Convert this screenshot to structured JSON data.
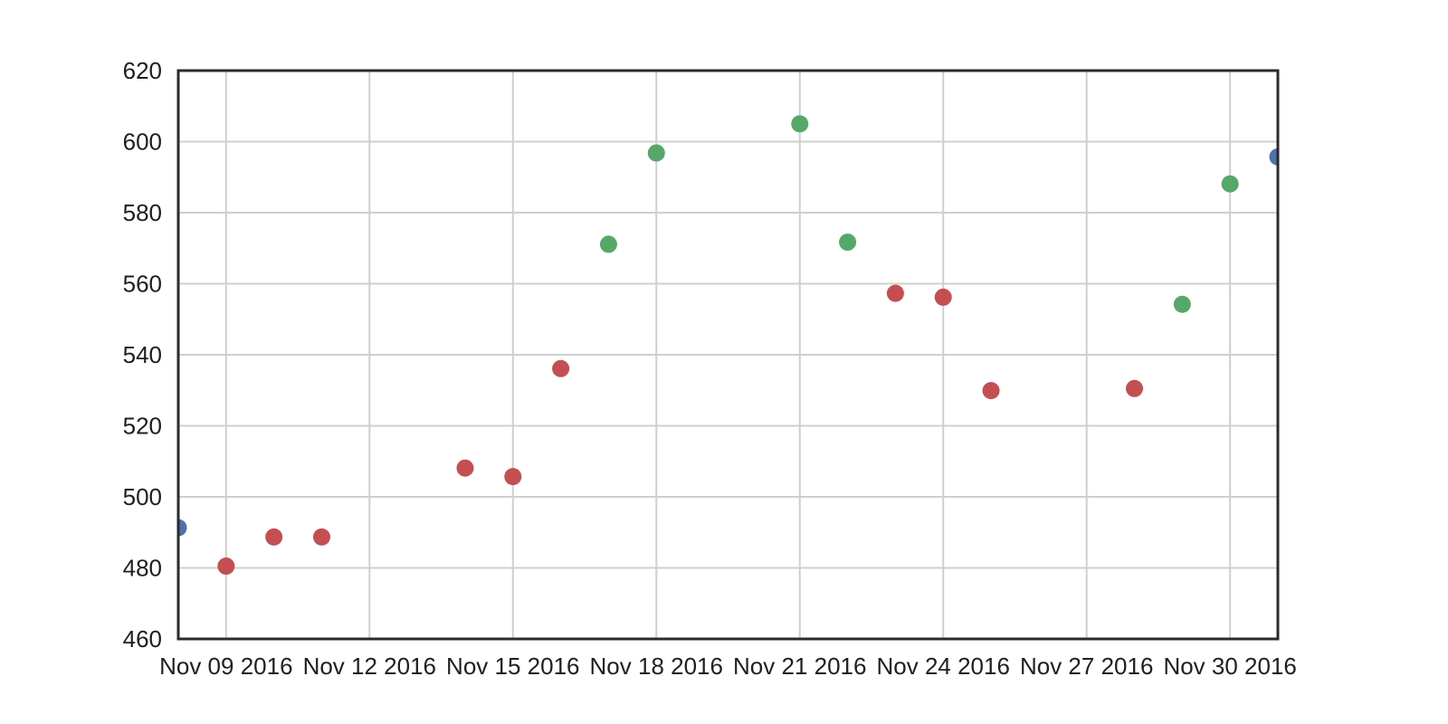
{
  "chart_data": {
    "type": "scatter",
    "title": "",
    "xlabel": "",
    "ylabel": "",
    "x_type": "date",
    "xlim": [
      "2016-11-08",
      "2016-12-01"
    ],
    "ylim": [
      460,
      620
    ],
    "grid": true,
    "legend": "none",
    "y_ticks": [
      "460",
      "480",
      "500",
      "520",
      "540",
      "560",
      "580",
      "600",
      "620"
    ],
    "x_ticks": [
      {
        "date": "2016-11-09",
        "label": "Nov 09 2016"
      },
      {
        "date": "2016-11-12",
        "label": "Nov 12 2016"
      },
      {
        "date": "2016-11-15",
        "label": "Nov 15 2016"
      },
      {
        "date": "2016-11-18",
        "label": "Nov 18 2016"
      },
      {
        "date": "2016-11-21",
        "label": "Nov 21 2016"
      },
      {
        "date": "2016-11-24",
        "label": "Nov 24 2016"
      },
      {
        "date": "2016-11-27",
        "label": "Nov 27 2016"
      },
      {
        "date": "2016-11-30",
        "label": "Nov 30 2016"
      }
    ],
    "colors": {
      "blue": "#4c72b0",
      "red": "#c44e52",
      "green": "#55a868"
    },
    "points": [
      {
        "date": "2016-11-08",
        "y": 491.3,
        "color": "blue"
      },
      {
        "date": "2016-11-09",
        "y": 480.5,
        "color": "red"
      },
      {
        "date": "2016-11-10",
        "y": 488.7,
        "color": "red"
      },
      {
        "date": "2016-11-11",
        "y": 488.7,
        "color": "red"
      },
      {
        "date": "2016-11-14",
        "y": 508.1,
        "color": "red"
      },
      {
        "date": "2016-11-15",
        "y": 505.7,
        "color": "red"
      },
      {
        "date": "2016-11-16",
        "y": 536.1,
        "color": "red"
      },
      {
        "date": "2016-11-17",
        "y": 571.1,
        "color": "green"
      },
      {
        "date": "2016-11-18",
        "y": 596.8,
        "color": "green"
      },
      {
        "date": "2016-11-21",
        "y": 605.0,
        "color": "green"
      },
      {
        "date": "2016-11-22",
        "y": 571.7,
        "color": "green"
      },
      {
        "date": "2016-11-23",
        "y": 557.3,
        "color": "red"
      },
      {
        "date": "2016-11-24",
        "y": 556.2,
        "color": "red"
      },
      {
        "date": "2016-11-25",
        "y": 529.9,
        "color": "red"
      },
      {
        "date": "2016-11-28",
        "y": 530.5,
        "color": "red"
      },
      {
        "date": "2016-11-29",
        "y": 554.2,
        "color": "green"
      },
      {
        "date": "2016-11-30",
        "y": 588.1,
        "color": "green"
      },
      {
        "date": "2016-12-01",
        "y": 595.7,
        "color": "blue"
      }
    ]
  }
}
